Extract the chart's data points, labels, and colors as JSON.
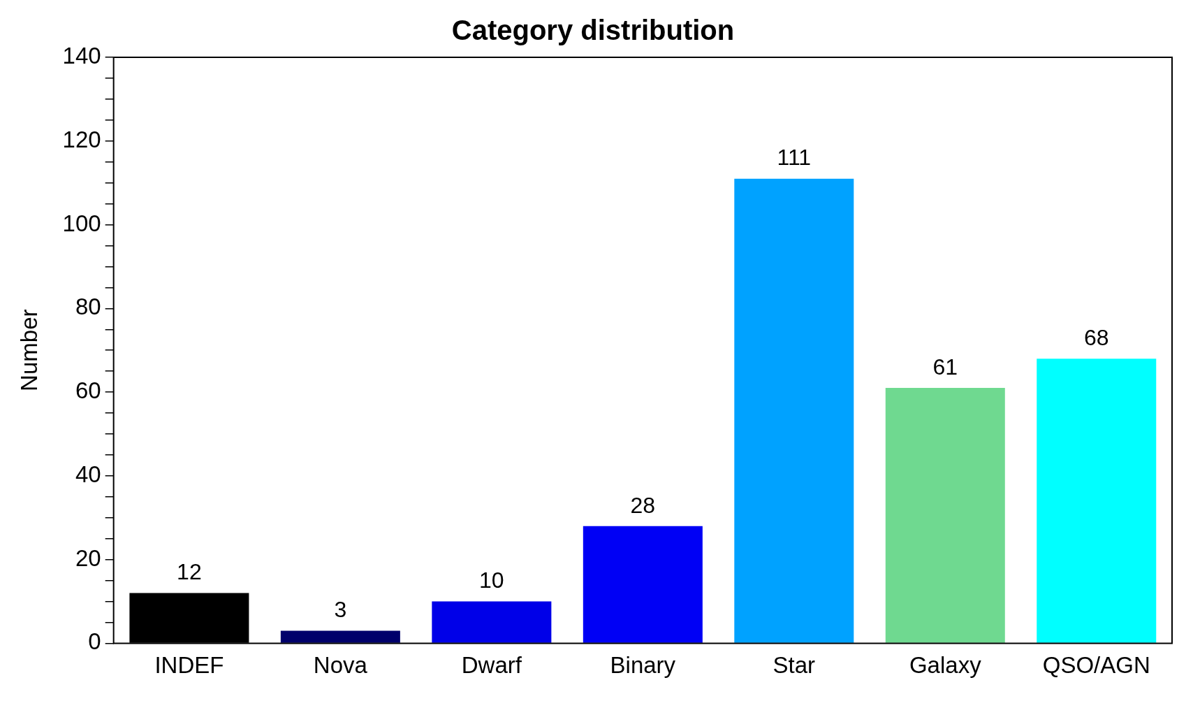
{
  "chart_data": {
    "type": "bar",
    "title": "Category distribution",
    "ylabel": "Number",
    "categories": [
      "INDEF",
      "Nova",
      "Dwarf",
      "Binary",
      "Star",
      "Galaxy",
      "QSO/AGN"
    ],
    "values": [
      12,
      3,
      10,
      28,
      111,
      61,
      68
    ],
    "colors": [
      "#000000",
      "#00006b",
      "#0000e8",
      "#0000f5",
      "#00a2ff",
      "#6fd990",
      "#00ffff"
    ],
    "ylim": [
      0,
      140
    ],
    "yticks": [
      0,
      {
        "value": 5,
        "label": null
      },
      {
        "value": 10,
        "label": null
      },
      {
        "value": 15,
        "label": null
      },
      20,
      {
        "value": 25,
        "label": null
      },
      {
        "value": 30,
        "label": null
      },
      {
        "value": 35,
        "label": null
      },
      40,
      {
        "value": 45,
        "label": null
      },
      {
        "value": 50,
        "label": null
      },
      {
        "value": 55,
        "label": null
      },
      60,
      {
        "value": 65,
        "label": null
      },
      {
        "value": 70,
        "label": null
      },
      {
        "value": 75,
        "label": null
      },
      80,
      {
        "value": 85,
        "label": null
      },
      {
        "value": 90,
        "label": null
      },
      {
        "value": 95,
        "label": null
      },
      100,
      {
        "value": 105,
        "label": null
      },
      {
        "value": 110,
        "label": null
      },
      {
        "value": 115,
        "label": null
      },
      120,
      {
        "value": 125,
        "label": null
      },
      {
        "value": 130,
        "label": null
      },
      {
        "value": 135,
        "label": null
      },
      140
    ],
    "data_labels": true,
    "grid": false,
    "legend": false
  }
}
